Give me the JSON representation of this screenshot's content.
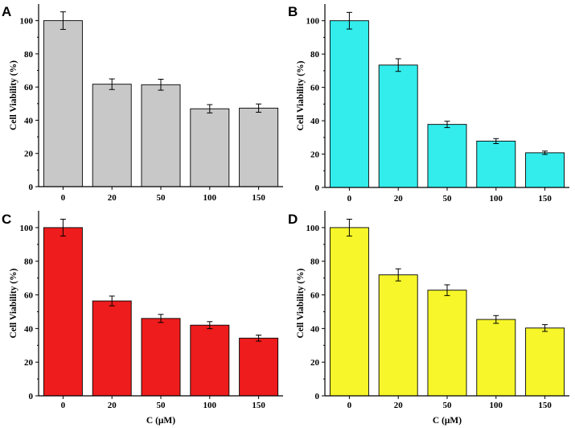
{
  "chart_data": [
    {
      "panel": "A",
      "type": "bar",
      "categories": [
        "0",
        "20",
        "50",
        "100",
        "150"
      ],
      "values": [
        100,
        61.7,
        61.4,
        46.9,
        47.3
      ],
      "errors": [
        5.3,
        3.2,
        3.3,
        2.5,
        2.5
      ],
      "color": "#c8c8c8",
      "xlabel": "",
      "ylabel": "Cell Viability (%)",
      "ylim": [
        0,
        110
      ],
      "yticks": [
        0,
        20,
        40,
        60,
        80,
        100
      ]
    },
    {
      "panel": "B",
      "type": "bar",
      "categories": [
        "0",
        "20",
        "50",
        "100",
        "150"
      ],
      "values": [
        100,
        73.4,
        37.8,
        27.8,
        20.8
      ],
      "errors": [
        5.0,
        3.8,
        1.9,
        1.5,
        1.0
      ],
      "color": "#33ecec",
      "xlabel": "",
      "ylabel": "Cell Viability (%)",
      "ylim": [
        0,
        110
      ],
      "yticks": [
        0,
        20,
        40,
        60,
        80,
        100
      ]
    },
    {
      "panel": "C",
      "type": "bar",
      "categories": [
        "0",
        "20",
        "50",
        "100",
        "150"
      ],
      "values": [
        100,
        56.4,
        46.0,
        42.0,
        34.3
      ],
      "errors": [
        5.0,
        2.9,
        2.4,
        2.1,
        1.8
      ],
      "color": "#ee1c1c",
      "xlabel": "C (μM)",
      "ylabel": "Cell Viability (%)",
      "ylim": [
        0,
        110
      ],
      "yticks": [
        0,
        20,
        40,
        60,
        80,
        100
      ]
    },
    {
      "panel": "D",
      "type": "bar",
      "categories": [
        "0",
        "20",
        "50",
        "100",
        "150"
      ],
      "values": [
        100,
        71.9,
        62.8,
        45.4,
        40.3
      ],
      "errors": [
        5.0,
        3.6,
        3.2,
        2.3,
        2.0
      ],
      "color": "#f6f62a",
      "xlabel": "C (μM)",
      "ylabel": "Cell Viability (%)",
      "ylim": [
        0,
        110
      ],
      "yticks": [
        0,
        20,
        40,
        60,
        80,
        100
      ]
    }
  ]
}
